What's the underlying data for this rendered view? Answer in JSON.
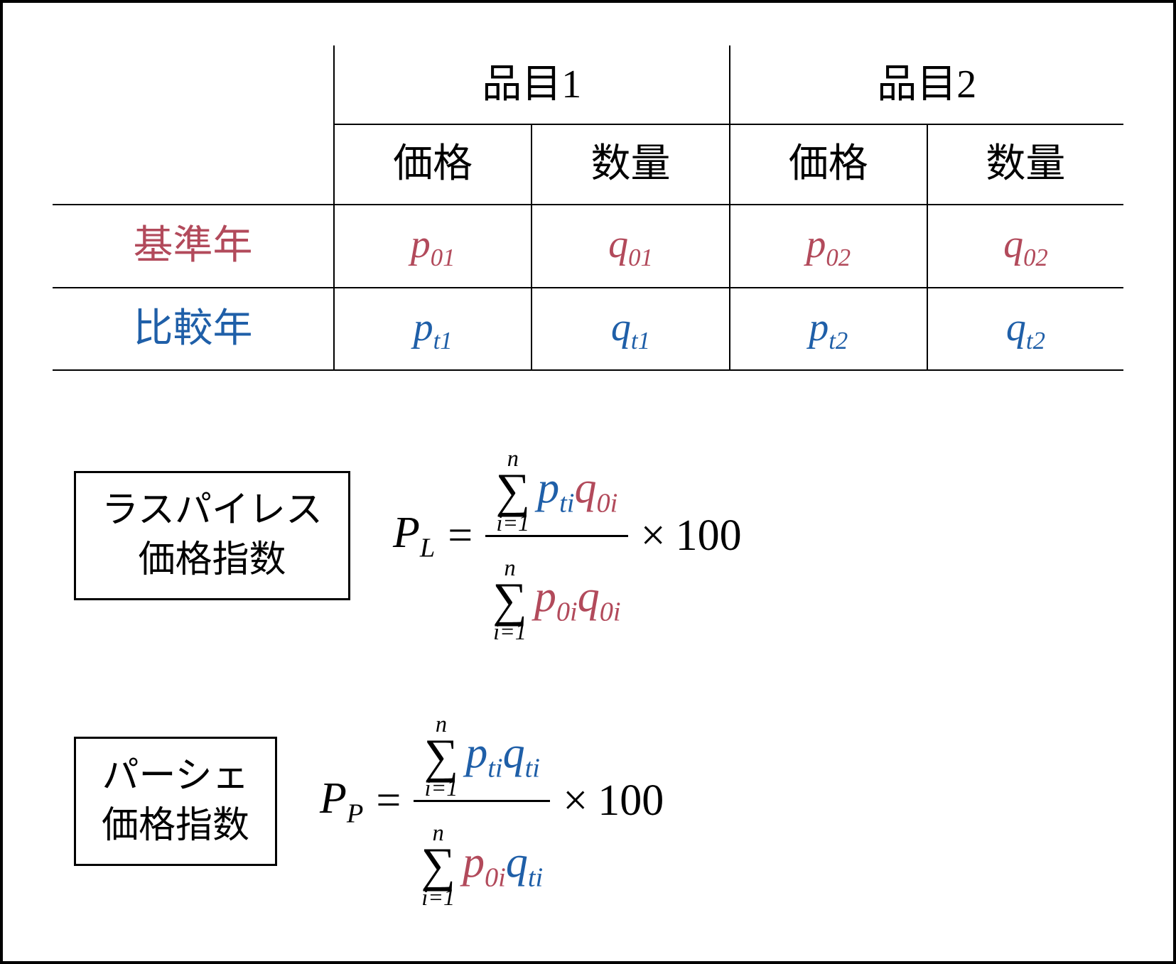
{
  "colors": {
    "base_year": "#b24a5b",
    "compare_year": "#1f5fa8",
    "text": "#000000",
    "border": "#000000",
    "background": "#ffffff"
  },
  "table": {
    "columns": [
      {
        "header": "品目1",
        "sub": [
          "価格",
          "数量"
        ]
      },
      {
        "header": "品目2",
        "sub": [
          "価格",
          "数量"
        ]
      }
    ],
    "row_labels": {
      "base": "基準年",
      "compare": "比較年"
    },
    "cells": {
      "base": {
        "p1": {
          "v": "p",
          "s": "01"
        },
        "q1": {
          "v": "q",
          "s": "01"
        },
        "p2": {
          "v": "p",
          "s": "02"
        },
        "q2": {
          "v": "q",
          "s": "02"
        }
      },
      "compare": {
        "p1": {
          "v": "p",
          "s": "t1"
        },
        "q1": {
          "v": "q",
          "s": "t1"
        },
        "p2": {
          "v": "p",
          "s": "t2"
        },
        "q2": {
          "v": "q",
          "s": "t2"
        }
      }
    }
  },
  "formulas": [
    {
      "label_line1": "ラスパイレス",
      "label_line2": "価格指数",
      "lhs_var": "P",
      "lhs_sub": "L",
      "sum_lower": "i=1",
      "sum_upper": "n",
      "num_terms": [
        {
          "v": "p",
          "s": "ti",
          "color": "compare"
        },
        {
          "v": "q",
          "s": "0i",
          "color": "base"
        }
      ],
      "den_terms": [
        {
          "v": "p",
          "s": "0i",
          "color": "base"
        },
        {
          "v": "q",
          "s": "0i",
          "color": "base"
        }
      ],
      "tail": "100"
    },
    {
      "label_line1": "パーシェ",
      "label_line2": "価格指数",
      "lhs_var": "P",
      "lhs_sub": "P",
      "sum_lower": "i=1",
      "sum_upper": "n",
      "num_terms": [
        {
          "v": "p",
          "s": "ti",
          "color": "compare"
        },
        {
          "v": "q",
          "s": "ti",
          "color": "compare"
        }
      ],
      "den_terms": [
        {
          "v": "p",
          "s": "0i",
          "color": "base"
        },
        {
          "v": "q",
          "s": "ti",
          "color": "compare"
        }
      ],
      "tail": "100"
    }
  ]
}
